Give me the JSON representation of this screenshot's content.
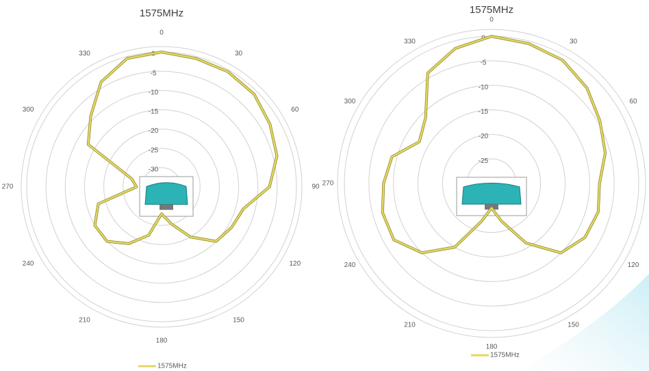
{
  "chart_data": [
    {
      "type": "polar",
      "title": "1575MHz",
      "theta": [
        0,
        15,
        30,
        45,
        60,
        75,
        90,
        105,
        120,
        135,
        150,
        165,
        180,
        195,
        210,
        225,
        240,
        255,
        270,
        285,
        300,
        315,
        330,
        345
      ],
      "series": [
        {
          "name": "1575MHz",
          "color": "#e3d862",
          "values": [
            0,
            -0.5,
            -0.5,
            -1,
            -2.5,
            -4,
            -7,
            -13,
            -14,
            -15,
            -20,
            -25,
            -28,
            -22,
            -18,
            -15,
            -15,
            -18,
            -28.5,
            -27,
            -13,
            -9,
            -3.6,
            -0.5
          ]
        }
      ],
      "thetaticks": [
        0,
        30,
        60,
        90,
        120,
        150,
        180,
        210,
        240,
        270,
        300,
        330
      ],
      "rlim": [
        -35,
        0
      ],
      "rticks": [
        0,
        -5,
        -10,
        -15,
        -20,
        -25,
        -30
      ]
    },
    {
      "type": "polar",
      "title": "1575MHz",
      "theta": [
        0,
        15,
        30,
        45,
        60,
        75,
        90,
        105,
        120,
        135,
        150,
        165,
        180,
        195,
        210,
        225,
        240,
        255,
        270,
        285,
        300,
        315,
        330,
        345
      ],
      "series": [
        {
          "name": "1575MHz",
          "color": "#e3d862",
          "values": [
            0,
            -0.5,
            -1,
            -2.5,
            -4.5,
            -6,
            -8,
            -7.5,
            -8,
            -10,
            -16,
            -22,
            -25,
            -22,
            -15,
            -10,
            -7,
            -7,
            -8,
            -9,
            -13,
            -11,
            -4,
            -1.5
          ]
        }
      ],
      "thetaticks": [
        0,
        30,
        60,
        90,
        120,
        150,
        180,
        210,
        240,
        270,
        300,
        330
      ],
      "rlim": [
        -30,
        0
      ],
      "rticks": [
        0,
        -5,
        -10,
        -15,
        -20,
        -25
      ]
    }
  ]
}
